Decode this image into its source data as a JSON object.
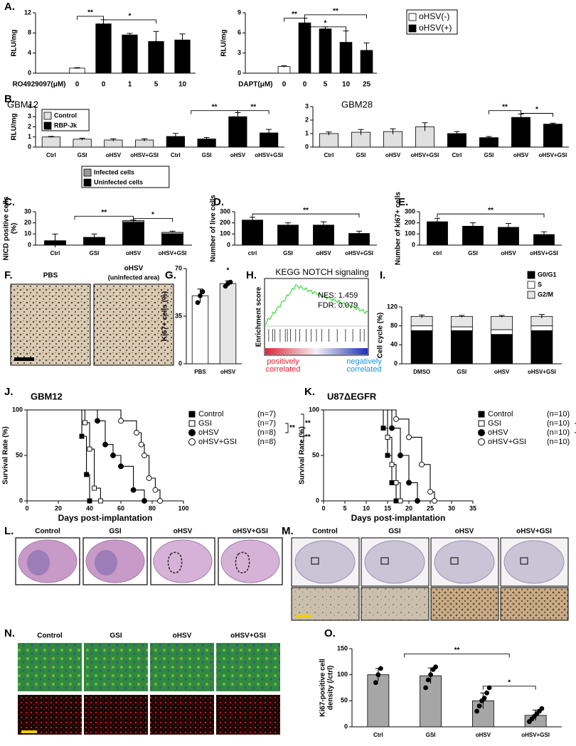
{
  "panel_labels": [
    "A.",
    "B.",
    "C.",
    "D.",
    "E.",
    "F.",
    "G.",
    "H.",
    "I.",
    "J.",
    "K.",
    "L.",
    "M.",
    "N.",
    "O."
  ],
  "images": {
    "F": {
      "labels": [
        "PBS",
        "oHSV"
      ],
      "note": "(uninfected area)"
    },
    "L": {
      "labels": [
        "Control",
        "GSI",
        "oHSV",
        "oHSV+GSI"
      ]
    },
    "M": {
      "labels": [
        "Control",
        "GSI",
        "oHSV",
        "oHSV+GSI"
      ]
    },
    "N": {
      "labels": [
        "Control",
        "GSI",
        "oHSV",
        "oHSV+GSI"
      ]
    }
  },
  "chart_data": [
    {
      "type": "bar",
      "y_label": "RLU/mg",
      "x_label": "RO4929097(μM)",
      "categories": [
        "0",
        "0",
        "1",
        "5",
        "10"
      ],
      "series": [
        {
          "name": "oHSV(-)",
          "color": "#ffffff",
          "values": [
            1,
            null,
            null,
            null,
            null
          ],
          "errors": [
            0.1,
            null,
            null,
            null,
            null
          ]
        },
        {
          "name": "oHSV(+)",
          "color": "#000000",
          "values": [
            null,
            9.8,
            7.6,
            6.3,
            6.6
          ],
          "errors": [
            null,
            0.8,
            0.3,
            2.0,
            1.2
          ]
        }
      ],
      "ylim": [
        0,
        12
      ],
      "yticks": [
        0,
        4,
        8,
        12
      ],
      "legend": false,
      "annotations": [
        "**",
        "*"
      ]
    },
    {
      "type": "bar",
      "y_label": "RLU/mg",
      "x_label": "DAPT(μM)",
      "categories": [
        "0",
        "0",
        "5",
        "10",
        "25"
      ],
      "series": [
        {
          "name": "oHSV(-)",
          "color": "#ffffff",
          "values": [
            1,
            null,
            null,
            null,
            null
          ],
          "errors": [
            0.1,
            null,
            null,
            null,
            null
          ]
        },
        {
          "name": "oHSV(+)",
          "color": "#000000",
          "values": [
            null,
            7.5,
            6.6,
            4.6,
            3.4
          ],
          "errors": [
            null,
            0.7,
            0.3,
            1.7,
            1.1
          ]
        }
      ],
      "ylim": [
        0,
        9
      ],
      "yticks": [
        0,
        3,
        6,
        9
      ],
      "legend": "right",
      "annotations": [
        "**",
        "*",
        "**"
      ]
    },
    {
      "type": "bar",
      "title": "GBM12",
      "y_label": "RLU/mg",
      "categories": [
        "Ctrl",
        "GSI",
        "oHSV",
        "oHSV+GSI",
        "Ctrl",
        "GSI",
        "oHSV",
        "oHSV+GSI"
      ],
      "series": [
        {
          "name": "Control",
          "color": "#e0e0e0",
          "values": [
            1.0,
            0.78,
            0.7,
            0.7,
            null,
            null,
            null,
            null
          ],
          "errors": [
            0.05,
            0.1,
            0.12,
            0.12,
            null,
            null,
            null,
            null
          ]
        },
        {
          "name": "RBP-Jk",
          "color": "#000000",
          "values": [
            null,
            null,
            null,
            null,
            1.05,
            0.8,
            3.0,
            1.4
          ],
          "errors": [
            null,
            null,
            null,
            null,
            0.3,
            0.15,
            0.4,
            0.35
          ]
        }
      ],
      "ylim": [
        0,
        4
      ],
      "yticks": [
        0,
        1,
        2,
        3,
        4
      ],
      "legend": "upper left",
      "annotations": [
        "**",
        "**"
      ]
    },
    {
      "type": "bar",
      "title": "GBM28",
      "categories": [
        "Ctrl",
        "GSI",
        "oHSV",
        "oHSV+GSI",
        "Ctrl",
        "GSI",
        "oHSV",
        "oHSV+GSI"
      ],
      "series": [
        {
          "color": "#e0e0e0",
          "values": [
            1.0,
            1.1,
            1.15,
            1.5,
            null,
            null,
            null,
            null
          ],
          "errors": [
            0.12,
            0.2,
            0.2,
            0.3,
            null,
            null,
            null,
            null
          ]
        },
        {
          "color": "#000000",
          "values": [
            null,
            null,
            null,
            null,
            1.0,
            0.7,
            2.2,
            1.7
          ],
          "errors": [
            null,
            null,
            null,
            null,
            0.15,
            0.08,
            0.25,
            0.07
          ]
        }
      ],
      "ylim": [
        0,
        3
      ],
      "yticks": [
        0,
        1,
        2,
        3
      ],
      "annotations": [
        "**",
        "*"
      ]
    },
    {
      "type": "stacked_bar",
      "y_label": [
        "NICD positive cells",
        "(%)"
      ],
      "categories": [
        "Ctrl",
        "GSI",
        "oHSV",
        "oHSV+GSI"
      ],
      "series": [
        {
          "name": "Uninfected cells",
          "color": "#000000",
          "values": [
            4,
            7,
            20.5,
            10
          ],
          "errors": [
            6,
            3,
            2,
            2.5
          ]
        },
        {
          "name": "Infected cells",
          "color": "#9a9a9a",
          "values": [
            null,
            null,
            1.5,
            1.5
          ]
        }
      ],
      "ylim": [
        0,
        30
      ],
      "yticks": [
        0,
        10,
        20,
        30
      ],
      "legend": "top",
      "annotations": [
        "**",
        "*"
      ]
    },
    {
      "type": "bar",
      "y_label": "Number of live cells",
      "categories": [
        "ctrl",
        "GSI",
        "oHSV",
        "oHSV+GSI"
      ],
      "series": [
        {
          "color": "#000000",
          "values": [
            225,
            180,
            180,
            105
          ],
          "errors": [
            25,
            20,
            30,
            20
          ]
        }
      ],
      "ylim": [
        0,
        300
      ],
      "yticks": [
        0,
        100,
        200,
        300
      ],
      "annotations": [
        "**"
      ]
    },
    {
      "type": "bar",
      "y_label": "Number of ki67+ cells",
      "categories": [
        "ctrl",
        "GSI",
        "oHSV",
        "oHSV+GSI"
      ],
      "series": [
        {
          "color": "#000000",
          "values": [
            210,
            170,
            160,
            95
          ],
          "errors": [
            30,
            30,
            35,
            25
          ]
        }
      ],
      "ylim": [
        0,
        300
      ],
      "yticks": [
        0,
        100,
        200,
        300
      ],
      "annotations": [
        "**"
      ]
    },
    {
      "type": "bar",
      "y_label": "Ki67+ cells (%)",
      "categories": [
        "PBS",
        "oHSV"
      ],
      "series": [
        {
          "colors": [
            "#ffffff",
            "#e6e6e6"
          ],
          "values": [
            50,
            59
          ],
          "errors": [
            5,
            2
          ],
          "points": [
            [
              45,
              50,
              53
            ],
            [
              57,
              59,
              60
            ]
          ]
        }
      ],
      "ylim": [
        0,
        70
      ],
      "yticks": [
        0,
        35,
        70
      ],
      "annotations": [
        "*"
      ]
    },
    {
      "type": "gsea",
      "title": "KEGG NOTCH signaling",
      "y_label": "Enrichment score",
      "annotations": [
        "NES: 1.459",
        "FDR: 0.079"
      ],
      "pos_label": [
        "positively",
        "correlated"
      ],
      "neg_label": [
        "negatively",
        "correlated"
      ]
    },
    {
      "type": "stacked_bar",
      "y_label": "Cell cycle (%)",
      "categories": [
        "DMSO",
        "GSI",
        "oHSV",
        "oHSV+GSI"
      ],
      "series": [
        {
          "name": "G0/G1",
          "color": "#000000",
          "values": [
            70,
            70,
            62,
            70
          ],
          "errors": [
            3,
            2,
            2,
            3
          ]
        },
        {
          "name": "S",
          "color": "#ffffff",
          "values": [
            10,
            8,
            10,
            10
          ]
        },
        {
          "name": "G2/M",
          "color": "#e6e6e6",
          "values": [
            20,
            22,
            28,
            20
          ],
          "errors": [
            3,
            2,
            2,
            4
          ]
        }
      ],
      "ylim": [
        0,
        120
      ],
      "yticks": [
        0,
        40,
        80,
        120
      ],
      "legend": "top right"
    },
    {
      "type": "survival",
      "title": "GBM12",
      "y_label": "Survival Rate (%)",
      "x_label": "Days post-implantation",
      "series": [
        {
          "name": "Control",
          "n": "(n=7)",
          "color": "#000000",
          "marker": "square",
          "x": [
            0,
            35,
            38,
            40
          ],
          "values": [
            100,
            71,
            29,
            0
          ]
        },
        {
          "name": "GSI",
          "n": "(n=7)",
          "color": "#ffffff",
          "marker": "square",
          "x": [
            0,
            37,
            40,
            43,
            47
          ],
          "values": [
            100,
            86,
            57,
            14,
            0
          ]
        },
        {
          "name": "oHSV",
          "n": "(n=8)",
          "color": "#000000",
          "marker": "circle",
          "x": [
            0,
            45,
            50,
            55,
            60,
            68,
            75
          ],
          "values": [
            100,
            88,
            62,
            50,
            38,
            12,
            0
          ]
        },
        {
          "name": "oHSV+GSI",
          "n": "(n=8)",
          "color": "#ffffff",
          "marker": "circle",
          "x": [
            0,
            60,
            70,
            73,
            75,
            78,
            82,
            85
          ],
          "values": [
            100,
            88,
            75,
            62,
            50,
            25,
            12,
            0
          ]
        }
      ],
      "xlim": [
        0,
        100
      ],
      "xticks": [
        0,
        20,
        40,
        60,
        80,
        100
      ],
      "ylim": [
        0,
        100
      ],
      "yticks": [
        0,
        50,
        100
      ],
      "legend": "right",
      "annotations": [
        "**",
        "**",
        "**"
      ]
    },
    {
      "type": "survival",
      "title": "U87ΔEGFR",
      "y_label": "Survival Rate (%)",
      "x_label": "Days post-implantation",
      "series": [
        {
          "name": "Control",
          "n": "(n=10)",
          "color": "#000000",
          "marker": "square",
          "x": [
            0,
            14,
            15,
            16,
            17
          ],
          "values": [
            100,
            80,
            50,
            20,
            0
          ]
        },
        {
          "name": "GSI",
          "n": "(n=10)",
          "color": "#ffffff",
          "marker": "square",
          "x": [
            0,
            15,
            16,
            17,
            18
          ],
          "values": [
            100,
            70,
            40,
            20,
            0
          ]
        },
        {
          "name": "oHSV",
          "n": "(n=10)",
          "color": "#000000",
          "marker": "circle",
          "x": [
            0,
            16,
            18,
            20,
            22
          ],
          "values": [
            100,
            80,
            50,
            20,
            0
          ]
        },
        {
          "name": "oHSV+GSI",
          "n": "(n=10)",
          "color": "#ffffff",
          "marker": "circle",
          "x": [
            0,
            17,
            20,
            23,
            25,
            26
          ],
          "values": [
            100,
            90,
            70,
            40,
            10,
            0
          ]
        }
      ],
      "xlim": [
        0,
        35
      ],
      "xticks": [
        0,
        5,
        10,
        15,
        20,
        25,
        30,
        35
      ],
      "ylim": [
        0,
        100
      ],
      "yticks": [
        0,
        50,
        100
      ],
      "legend": "right",
      "annotations": [
        "**",
        "**",
        "*"
      ]
    },
    {
      "type": "bar",
      "y_label": [
        "Ki67-positive cell",
        "density (/ctrl)"
      ],
      "categories": [
        "Ctrl",
        "GSI",
        "oHSV",
        "oHSV+GSI"
      ],
      "series": [
        {
          "color": "#a6a6a6",
          "values": [
            100,
            98,
            50,
            22
          ],
          "errors": [
            12,
            15,
            15,
            10
          ],
          "points": [
            [
              85,
              100,
              112
            ],
            [
              75,
              90,
              100,
              110,
              115
            ],
            [
              30,
              40,
              50,
              55,
              65,
              75
            ],
            [
              10,
              15,
              20,
              25,
              30,
              35
            ]
          ]
        }
      ],
      "ylim": [
        0,
        150
      ],
      "yticks": [
        0,
        50,
        100,
        150
      ],
      "annotations": [
        "**",
        "*"
      ]
    }
  ]
}
